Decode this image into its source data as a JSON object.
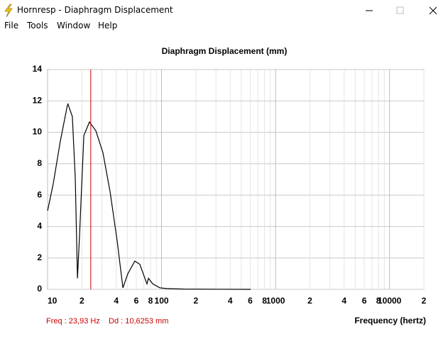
{
  "window": {
    "title": "Hornresp - Diaphragm Displacement",
    "menu": [
      "File",
      "Tools",
      "Window",
      "Help"
    ]
  },
  "chart_data": {
    "type": "line",
    "title": "Diaphragm Displacement (mm)",
    "x_label": "Frequency (hertz)",
    "x_scale": "log",
    "grid": true,
    "x": [
      10,
      11.2,
      12.9,
      14.9,
      15.1,
      16.5,
      17.5,
      18.3,
      19.1,
      20.8,
      23.3,
      26.5,
      30.6,
      35.4,
      40.8,
      45.8,
      50.6,
      58.3,
      64.4,
      72.3,
      74.5,
      76.7,
      83.6,
      96.6,
      111,
      159,
      300,
      605
    ],
    "series": [
      {
        "name": "Displacement",
        "color": "#000000",
        "values": [
          5.0,
          6.7,
          9.4,
          11.7,
          11.8,
          11.0,
          7.1,
          0.7,
          3.5,
          9.8,
          10.66,
          10.1,
          8.7,
          6.2,
          3.1,
          0.1,
          1.0,
          1.8,
          1.6,
          0.6,
          0.35,
          0.7,
          0.35,
          0.1,
          0.05,
          0.02,
          0.01,
          0
        ]
      }
    ],
    "xlim": [
      10,
      20000
    ],
    "ylim": [
      0,
      14
    ],
    "xticks": [
      {
        "value": 10,
        "label": "10"
      },
      {
        "value": 20,
        "label": "2"
      },
      {
        "value": 40,
        "label": "4"
      },
      {
        "value": 60,
        "label": "6"
      },
      {
        "value": 80,
        "label": "8"
      },
      {
        "value": 100,
        "label": "100"
      },
      {
        "value": 200,
        "label": "2"
      },
      {
        "value": 400,
        "label": "4"
      },
      {
        "value": 600,
        "label": "6"
      },
      {
        "value": 800,
        "label": "8"
      },
      {
        "value": 1000,
        "label": "1000"
      },
      {
        "value": 2000,
        "label": "2"
      },
      {
        "value": 4000,
        "label": "4"
      },
      {
        "value": 6000,
        "label": "6"
      },
      {
        "value": 8000,
        "label": "8"
      },
      {
        "value": 10000,
        "label": "10000"
      },
      {
        "value": 20000,
        "label": "2"
      }
    ],
    "x_minor_grid": [
      30,
      50,
      70,
      90,
      300,
      500,
      700,
      900,
      3000,
      5000,
      7000,
      9000
    ],
    "yticks": [
      0,
      2,
      4,
      6,
      8,
      10,
      12,
      14
    ],
    "cursor": {
      "x": 23.93,
      "color": "#cc0000",
      "label": "Freq : 23,93 Hz",
      "readout": "Dd : 10,6253 mm"
    }
  }
}
